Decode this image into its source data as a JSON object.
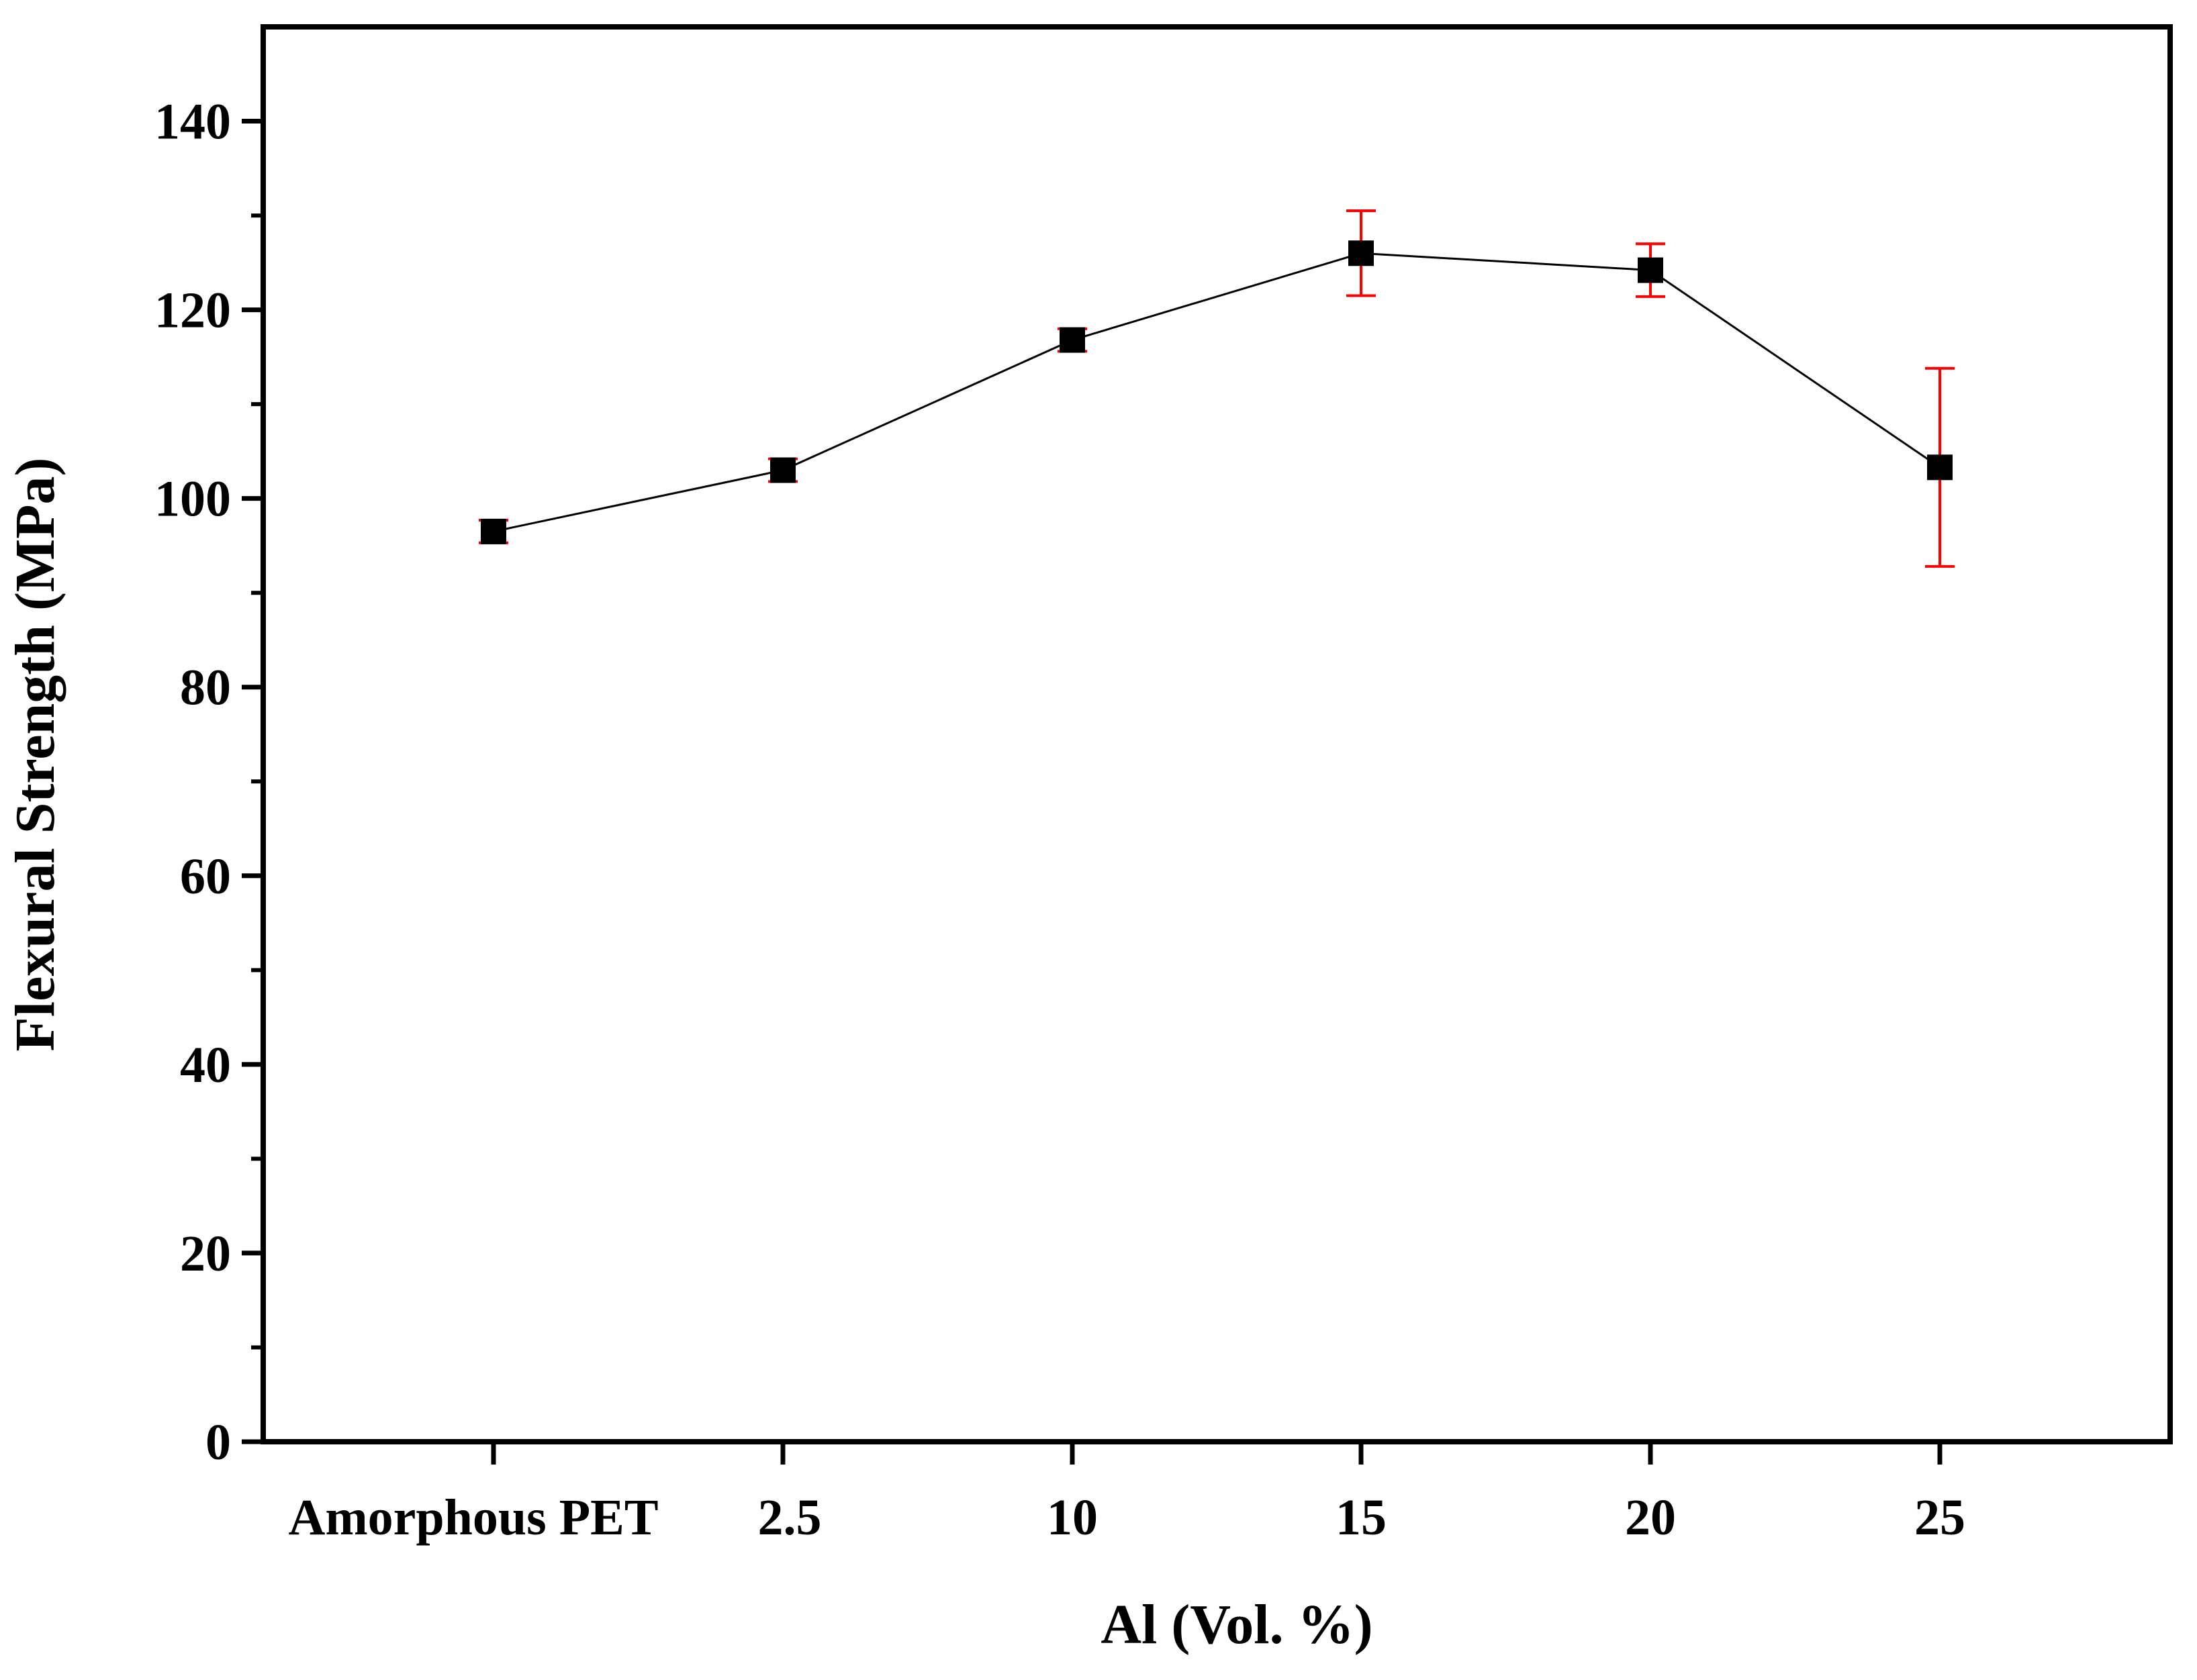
{
  "chart_data": {
    "type": "line",
    "title": "",
    "xlabel": "Al (Vol. %)",
    "ylabel": "Flexural Strength (MPa)",
    "categories": [
      "Amorphous PET",
      "2.5",
      "10",
      "15",
      "20",
      "25"
    ],
    "series": [
      {
        "name": "Flexural Strength",
        "values": [
          96.5,
          103.0,
          116.8,
          126.0,
          124.2,
          103.3
        ],
        "errors": [
          1.2,
          1.2,
          1.2,
          4.5,
          2.8,
          10.5
        ]
      }
    ],
    "ylim": [
      0,
      150
    ],
    "yticks": [
      0,
      20,
      40,
      60,
      80,
      100,
      120,
      140
    ],
    "grid": false,
    "legend": "none"
  },
  "colors": {
    "line": "#000000",
    "marker": "#000000",
    "error_bar": "#ff0000",
    "axis": "#000000"
  }
}
